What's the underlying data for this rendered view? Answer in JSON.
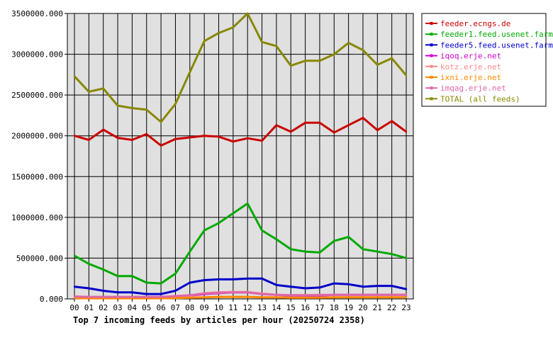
{
  "chart_data": {
    "type": "line",
    "title": "Top 7 incoming feeds by articles per hour (20250724 2358)",
    "xlabel": "",
    "ylabel": "",
    "categories": [
      "00",
      "01",
      "02",
      "03",
      "04",
      "05",
      "06",
      "07",
      "08",
      "09",
      "10",
      "11",
      "12",
      "13",
      "14",
      "15",
      "16",
      "17",
      "18",
      "19",
      "20",
      "21",
      "22",
      "23"
    ],
    "ylim": [
      0,
      3500000
    ],
    "yticks": [
      "0.000",
      "500000.000",
      "1000000.000",
      "1500000.000",
      "2000000.000",
      "2500000.000",
      "3000000.000",
      "3500000.000"
    ],
    "grid": true,
    "legend_position": "right",
    "series": [
      {
        "name": "feeder.ecngs.de",
        "color": "#cc0000",
        "values": [
          2000000,
          1950000,
          2075000,
          1975000,
          1950000,
          2020000,
          1880000,
          1960000,
          1980000,
          2000000,
          1990000,
          1930000,
          1970000,
          1940000,
          2130000,
          2050000,
          2160000,
          2160000,
          2040000,
          2130000,
          2220000,
          2070000,
          2180000,
          2050000
        ]
      },
      {
        "name": "feeder1.feed.usenet.farm",
        "color": "#00aa00",
        "values": [
          530000,
          430000,
          360000,
          280000,
          280000,
          200000,
          190000,
          310000,
          580000,
          840000,
          930000,
          1050000,
          1170000,
          840000,
          730000,
          610000,
          580000,
          570000,
          710000,
          760000,
          610000,
          580000,
          550000,
          500000
        ]
      },
      {
        "name": "feeder5.feed.usenet.farm",
        "color": "#0000cc",
        "values": [
          150000,
          130000,
          100000,
          80000,
          80000,
          60000,
          60000,
          100000,
          200000,
          230000,
          240000,
          240000,
          250000,
          250000,
          170000,
          150000,
          130000,
          140000,
          190000,
          180000,
          150000,
          160000,
          160000,
          120000
        ]
      },
      {
        "name": "iqoq.erje.net",
        "color": "#cc00cc",
        "values": [
          20000,
          15000,
          20000,
          20000,
          20000,
          20000,
          20000,
          30000,
          40000,
          60000,
          70000,
          80000,
          80000,
          60000,
          50000,
          40000,
          40000,
          40000,
          50000,
          50000,
          50000,
          50000,
          50000,
          50000
        ]
      },
      {
        "name": "kotz.erje.net",
        "color": "#ff8888",
        "values": [
          25000,
          20000,
          20000,
          20000,
          20000,
          20000,
          20000,
          30000,
          40000,
          70000,
          80000,
          85000,
          85000,
          65000,
          50000,
          45000,
          45000,
          50000,
          50000,
          50000,
          50000,
          50000,
          50000,
          50000
        ]
      },
      {
        "name": "ixni.erje.net",
        "color": "#ff8800",
        "values": [
          10000,
          8000,
          8000,
          8000,
          8000,
          8000,
          8000,
          10000,
          15000,
          20000,
          25000,
          25000,
          25000,
          20000,
          20000,
          15000,
          15000,
          15000,
          20000,
          20000,
          20000,
          20000,
          20000,
          20000
        ]
      },
      {
        "name": "imqag.erje.net",
        "color": "#dd66aa",
        "values": [
          30000,
          25000,
          25000,
          25000,
          25000,
          25000,
          25000,
          35000,
          45000,
          65000,
          75000,
          80000,
          80000,
          60000,
          50000,
          45000,
          45000,
          45000,
          50000,
          50000,
          50000,
          50000,
          50000,
          50000
        ]
      },
      {
        "name": "TOTAL (all feeds)",
        "color": "#888800",
        "values": [
          2730000,
          2540000,
          2580000,
          2370000,
          2340000,
          2320000,
          2170000,
          2390000,
          2780000,
          3160000,
          3260000,
          3330000,
          3500000,
          3150000,
          3100000,
          2860000,
          2920000,
          2920000,
          3000000,
          3140000,
          3050000,
          2870000,
          2950000,
          2740000
        ]
      }
    ]
  }
}
